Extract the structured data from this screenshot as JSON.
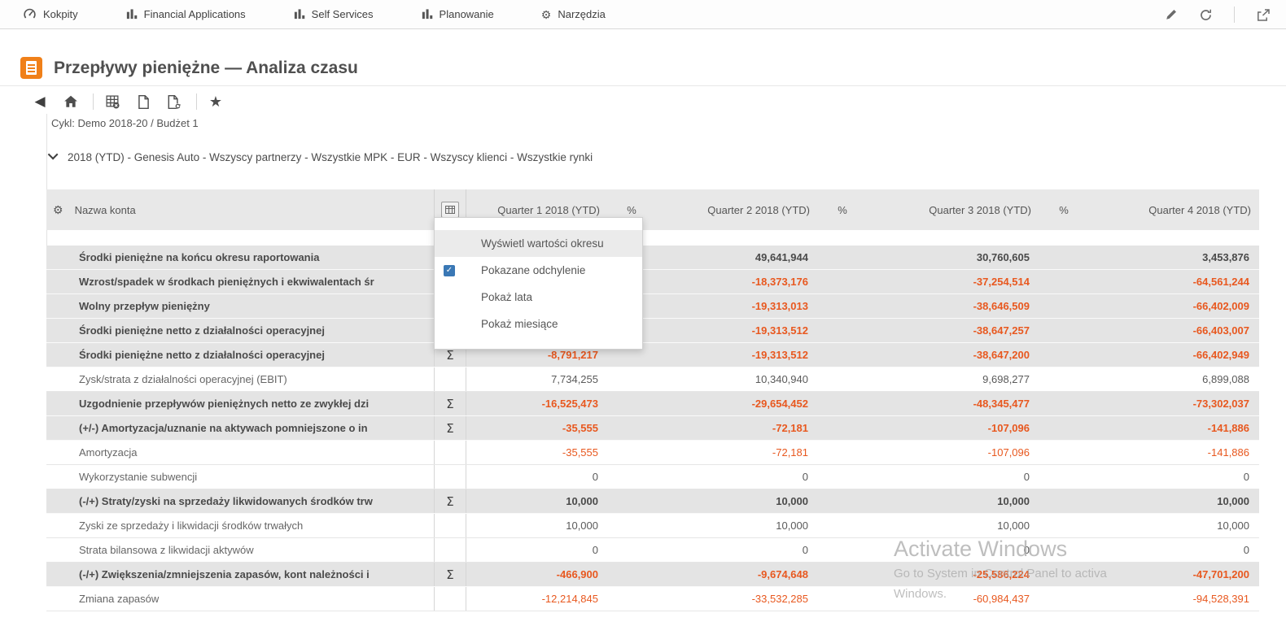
{
  "nav": {
    "items": [
      {
        "label": "Kokpity",
        "icon": "gauge-icon"
      },
      {
        "label": "Financial Applications",
        "icon": "bar-chart-icon"
      },
      {
        "label": "Self Services",
        "icon": "bar-chart-icon"
      },
      {
        "label": "Planowanie",
        "icon": "bar-chart-icon"
      },
      {
        "label": "Narzędzia",
        "icon": "gear-icon"
      }
    ]
  },
  "page": {
    "title": "Przepływy pieniężne — Analiza czasu",
    "cycle": "Cykl: Demo 2018-20 / Budżet 1",
    "filter": "2018 (YTD) - Genesis Auto - Wszyscy partnerzy - Wszystkie MPK - EUR - Wszyscy klienci - Wszystkie rynki"
  },
  "menu": {
    "items": [
      {
        "label": "Wyświetl wartości okresu",
        "checked": false,
        "highlighted": true
      },
      {
        "label": "Pokazane odchylenie",
        "checked": true,
        "highlighted": false
      },
      {
        "label": "Pokaż lata",
        "checked": false,
        "highlighted": false
      },
      {
        "label": "Pokaż miesiące",
        "checked": false,
        "highlighted": false
      }
    ]
  },
  "table": {
    "columns": {
      "name": "Nazwa konta",
      "q1": "Quarter 1 2018 (YTD)",
      "pct": "%",
      "q2": "Quarter 2 2018 (YTD)",
      "q3": "Quarter 3 2018 (YTD)",
      "q4": "Quarter 4 2018 (YTD)"
    },
    "rows": [
      {
        "name": "Środki pieniężne na końcu okresu raportowania",
        "shaded": true,
        "sigma": false,
        "q1": "",
        "q2": "49,641,944",
        "q3": "30,760,605",
        "q4": "3,453,876"
      },
      {
        "name": "Wzrost/spadek w środkach pieniężnych i ekwiwalentach śr",
        "shaded": true,
        "sigma": false,
        "q1": "",
        "q2": "-18,373,176",
        "q3": "-37,254,514",
        "q4": "-64,561,244"
      },
      {
        "name": "Wolny przepływ pieniężny",
        "shaded": true,
        "sigma": false,
        "q1": "",
        "q2": "-19,313,013",
        "q3": "-38,646,509",
        "q4": "-66,402,009"
      },
      {
        "name": "Środki pieniężne netto z działalności operacyjnej",
        "shaded": true,
        "sigma": false,
        "q1": "",
        "q2": "-19,313,512",
        "q3": "-38,647,257",
        "q4": "-66,403,007"
      },
      {
        "name": "Środki pieniężne netto z działalności operacyjnej",
        "shaded": true,
        "sigma": true,
        "q1": "-8,791,217",
        "q2": "-19,313,512",
        "q3": "-38,647,200",
        "q4": "-66,402,949"
      },
      {
        "name": "Zysk/strata z działalności operacyjnej (EBIT)",
        "shaded": false,
        "sigma": false,
        "q1": "7,734,255",
        "q2": "10,340,940",
        "q3": "9,698,277",
        "q4": "6,899,088"
      },
      {
        "name": "Uzgodnienie przepływów pieniężnych netto ze zwykłej dzi",
        "shaded": true,
        "sigma": true,
        "q1": "-16,525,473",
        "q2": "-29,654,452",
        "q3": "-48,345,477",
        "q4": "-73,302,037"
      },
      {
        "name": "(+/-) Amortyzacja/uznanie na aktywach pomniejszone o in",
        "shaded": true,
        "sigma": true,
        "q1": "-35,555",
        "q2": "-72,181",
        "q3": "-107,096",
        "q4": "-141,886"
      },
      {
        "name": "Amortyzacja",
        "shaded": false,
        "sigma": false,
        "q1": "-35,555",
        "q2": "-72,181",
        "q3": "-107,096",
        "q4": "-141,886"
      },
      {
        "name": "Wykorzystanie subwencji",
        "shaded": false,
        "sigma": false,
        "q1": "0",
        "q2": "0",
        "q3": "0",
        "q4": "0"
      },
      {
        "name": "(-/+) Straty/zyski na sprzedaży likwidowanych środków trw",
        "shaded": true,
        "sigma": true,
        "q1": "10,000",
        "q2": "10,000",
        "q3": "10,000",
        "q4": "10,000"
      },
      {
        "name": "Zyski ze sprzedaży i likwidacji środków trwałych",
        "shaded": false,
        "sigma": false,
        "q1": "10,000",
        "q2": "10,000",
        "q3": "10,000",
        "q4": "10,000"
      },
      {
        "name": "Strata bilansowa z likwidacji aktywów",
        "shaded": false,
        "sigma": false,
        "q1": "0",
        "q2": "0",
        "q3": "0",
        "q4": "0"
      },
      {
        "name": "(-/+) Zwiększenia/zmniejszenia zapasów, kont należności i",
        "shaded": true,
        "sigma": true,
        "q1": "-466,900",
        "q2": "-9,674,648",
        "q3": "-25,586,224",
        "q4": "-47,701,200"
      },
      {
        "name": "Zmiana zapasów",
        "shaded": false,
        "sigma": false,
        "q1": "-12,214,845",
        "q2": "-33,532,285",
        "q3": "-60,984,437",
        "q4": "-94,528,391"
      }
    ]
  },
  "watermark": {
    "line1": "Activate Windows",
    "line2": "Go to System in Control Panel to activa",
    "line3": "Windows."
  },
  "colors": {
    "accent_orange": "#f08019",
    "negative_value": "#e8581f",
    "checkbox_blue": "#3a78b5",
    "row_shaded": "#e4e4e4",
    "header_bg": "#e8e8e8"
  }
}
